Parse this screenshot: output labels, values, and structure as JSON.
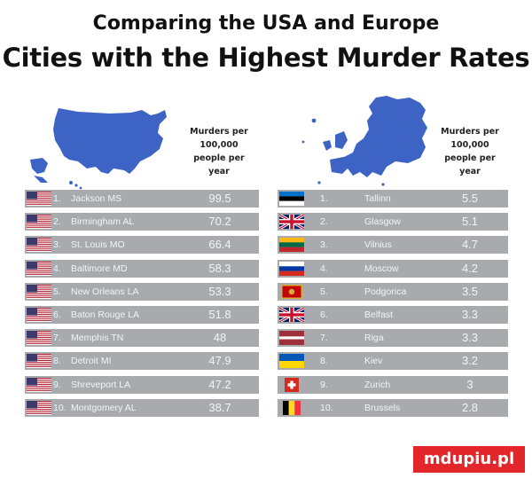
{
  "title_line1": "Comparing the USA and Europe",
  "title_line2": "Cities with the Highest Murder Rates",
  "header": {
    "l1": "Murders per",
    "l2": "100,000",
    "l3": "people per",
    "l4": "year"
  },
  "watermark": "mdupiu.pl",
  "colors": {
    "row_bg": "#a8aaae",
    "map_blue": "#3d63c4",
    "row_text": "#f4f4f4"
  },
  "chart_data": [
    {
      "type": "table",
      "group": "USA",
      "rows": [
        {
          "rank": "1.",
          "city": "Jackson MS",
          "value": "99.5",
          "flag": "usa-flag"
        },
        {
          "rank": "2.",
          "city": "Birmingham AL",
          "value": "70.2",
          "flag": "usa-flag"
        },
        {
          "rank": "3.",
          "city": "St. Louis MO",
          "value": "66.4",
          "flag": "usa-flag"
        },
        {
          "rank": "4.",
          "city": "Baltimore MD",
          "value": "58.3",
          "flag": "usa-flag"
        },
        {
          "rank": "5.",
          "city": "New Orleans LA",
          "value": "53.3",
          "flag": "usa-flag"
        },
        {
          "rank": "6.",
          "city": "Baton Rouge LA",
          "value": "51.8",
          "flag": "usa-flag"
        },
        {
          "rank": "7.",
          "city": "Memphis TN",
          "value": "48",
          "flag": "usa-flag"
        },
        {
          "rank": "8.",
          "city": "Detroit MI",
          "value": "47.9",
          "flag": "usa-flag"
        },
        {
          "rank": "9.",
          "city": "Shreveport LA",
          "value": "47.2",
          "flag": "usa-flag"
        },
        {
          "rank": "10.",
          "city": "Montgomery AL",
          "value": "38.7",
          "flag": "usa-flag"
        }
      ]
    },
    {
      "type": "table",
      "group": "Europe",
      "rows": [
        {
          "rank": "1.",
          "city": "Tallinn",
          "value": "5.5",
          "flag": "estonia-flag"
        },
        {
          "rank": "2.",
          "city": "Glasgow",
          "value": "5.1",
          "flag": "uk-flag"
        },
        {
          "rank": "3.",
          "city": "Vilnius",
          "value": "4.7",
          "flag": "lithuania-flag"
        },
        {
          "rank": "4.",
          "city": "Moscow",
          "value": "4.2",
          "flag": "russia-flag"
        },
        {
          "rank": "5.",
          "city": "Podgorica",
          "value": "3.5",
          "flag": "montenegro-flag"
        },
        {
          "rank": "6.",
          "city": "Belfast",
          "value": "3.3",
          "flag": "uk-flag"
        },
        {
          "rank": "7.",
          "city": "Riga",
          "value": "3.3",
          "flag": "latvia-flag"
        },
        {
          "rank": "8.",
          "city": "Kiev",
          "value": "3.2",
          "flag": "ukraine-flag"
        },
        {
          "rank": "9.",
          "city": "Zurich",
          "value": "3",
          "flag": "switzerland-flag"
        },
        {
          "rank": "10.",
          "city": "Brussels",
          "value": "2.8",
          "flag": "belgium-flag"
        }
      ]
    }
  ]
}
